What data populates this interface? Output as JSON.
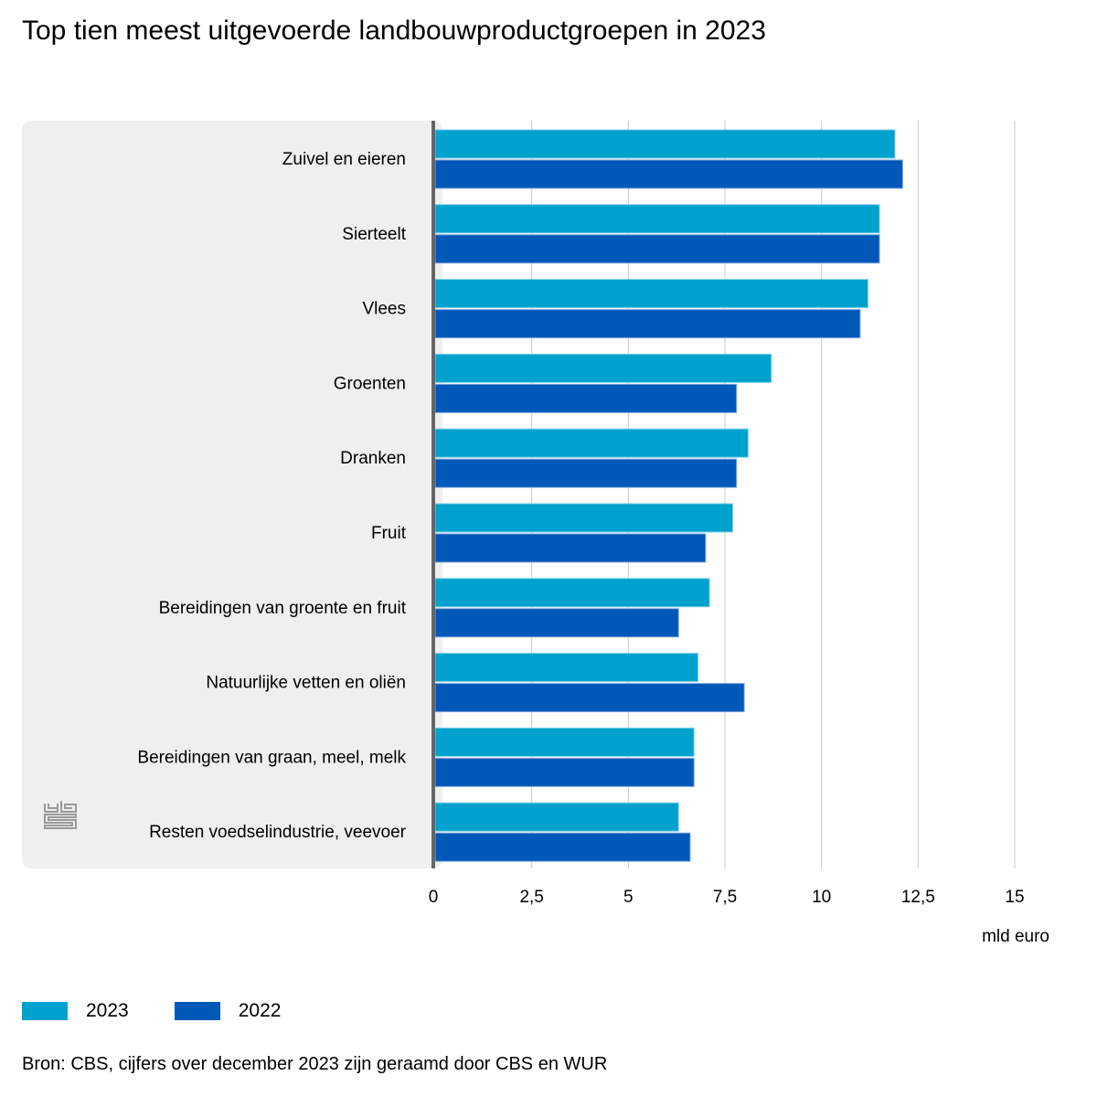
{
  "title": "Top tien meest uitgevoerde landbouwproductgroepen in 2023",
  "colors": {
    "2023": "#00a1cd",
    "2022": "#0058b8",
    "panel": "#efefef",
    "axis": "#666666",
    "grid": "#cccccc"
  },
  "legend": [
    {
      "label": "2023",
      "color": "#00a1cd"
    },
    {
      "label": "2022",
      "color": "#0058b8"
    }
  ],
  "source": "Bron: CBS, cijfers over december 2023 zijn geraamd door CBS en WUR",
  "logo": "cbs-logo-icon",
  "chart_data": {
    "type": "bar",
    "orientation": "horizontal",
    "title": "Top tien meest uitgevoerde landbouwproductgroepen in 2023",
    "xlabel": "mld euro",
    "ylabel": "",
    "xlim": [
      0,
      15
    ],
    "ticks": [
      "0",
      "2,5",
      "5",
      "7,5",
      "10",
      "12,5",
      "15"
    ],
    "tick_values": [
      0,
      2.5,
      5,
      7.5,
      10,
      12.5,
      15
    ],
    "grid": true,
    "legend_position": "bottom-left",
    "categories": [
      "Zuivel en eieren",
      "Sierteelt",
      "Vlees",
      "Groenten",
      "Dranken",
      "Fruit",
      "Bereidingen van groente en fruit",
      "Natuurlijke vetten en oliën",
      "Bereidingen van graan, meel, melk",
      "Resten voedselindustrie, veevoer"
    ],
    "series": [
      {
        "name": "2023",
        "color": "#00a1cd",
        "values": [
          11.9,
          11.5,
          11.2,
          8.7,
          8.1,
          7.7,
          7.1,
          6.8,
          6.7,
          6.3
        ]
      },
      {
        "name": "2022",
        "color": "#0058b8",
        "values": [
          12.1,
          11.5,
          11.0,
          7.8,
          7.8,
          7.0,
          6.3,
          8.0,
          6.7,
          6.6
        ]
      }
    ]
  }
}
